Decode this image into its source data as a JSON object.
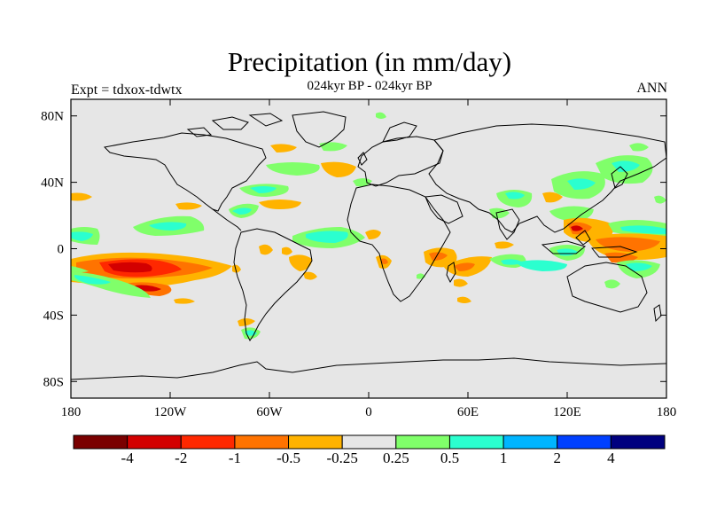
{
  "title": "Precipitation (in mm/day)",
  "subtitle": "024kyr BP - 024kyr BP",
  "experiment": "Expt = tdxox-tdwtx",
  "season": "ANN",
  "colors": {
    "ocean_background": "#e6e6e6",
    "coastline": "#000000",
    "colorbar": [
      "#7a0000",
      "#d30000",
      "#ff2800",
      "#ff7300",
      "#ffb300",
      "#e6e6e6",
      "#80ff6a",
      "#2bffcf",
      "#00b5ff",
      "#0040ff",
      "#00007f"
    ]
  },
  "lat_ticks": [
    {
      "label": "80N",
      "lat": 80
    },
    {
      "label": "40N",
      "lat": 40
    },
    {
      "label": "0",
      "lat": 0
    },
    {
      "label": "40S",
      "lat": -40
    },
    {
      "label": "80S",
      "lat": -80
    }
  ],
  "lon_ticks": [
    {
      "label": "180",
      "lon": -180
    },
    {
      "label": "120W",
      "lon": -120
    },
    {
      "label": "60W",
      "lon": -60
    },
    {
      "label": "0",
      "lon": 0
    },
    {
      "label": "60E",
      "lon": 60
    },
    {
      "label": "120E",
      "lon": 120
    },
    {
      "label": "180",
      "lon": 180
    }
  ],
  "colorbar_labels": [
    "-4",
    "-2",
    "-1",
    "-0.5",
    "-0.25",
    "0.25",
    "0.5",
    "1",
    "2",
    "4"
  ]
}
